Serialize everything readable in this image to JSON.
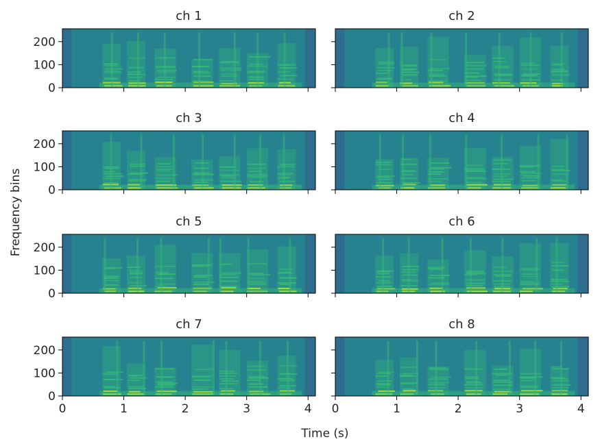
{
  "chart_data": {
    "type": "heatmap",
    "description_type": "spectrogram grid",
    "colormap": "viridis",
    "shared_x": true,
    "shared_y": true,
    "xlabel": "Time (s)",
    "ylabel": "Frequency bins",
    "xlim": [
      0,
      4.12
    ],
    "ylim": [
      0,
      256
    ],
    "xticks": [
      0,
      1,
      2,
      3,
      4
    ],
    "yticks": [
      0,
      100,
      200
    ],
    "panels": [
      {
        "title": "ch 1"
      },
      {
        "title": "ch 2"
      },
      {
        "title": "ch 3"
      },
      {
        "title": "ch 4"
      },
      {
        "title": "ch 5"
      },
      {
        "title": "ch 6"
      },
      {
        "title": "ch 7"
      },
      {
        "title": "ch 8"
      }
    ],
    "speech_segments_s": [
      [
        0.65,
        0.95
      ],
      [
        1.05,
        1.35
      ],
      [
        1.5,
        1.85
      ],
      [
        2.1,
        2.45
      ],
      [
        2.55,
        2.9
      ],
      [
        3.0,
        3.35
      ],
      [
        3.5,
        3.8
      ]
    ],
    "silence_edges_s": [
      [
        0,
        0.15
      ],
      [
        3.95,
        4.12
      ]
    ]
  },
  "colors": {
    "background": "#26828e",
    "silence": "#31688e",
    "speech_mid": "#35b779",
    "speech_high": "#b5de2b",
    "axis": "#000000"
  }
}
